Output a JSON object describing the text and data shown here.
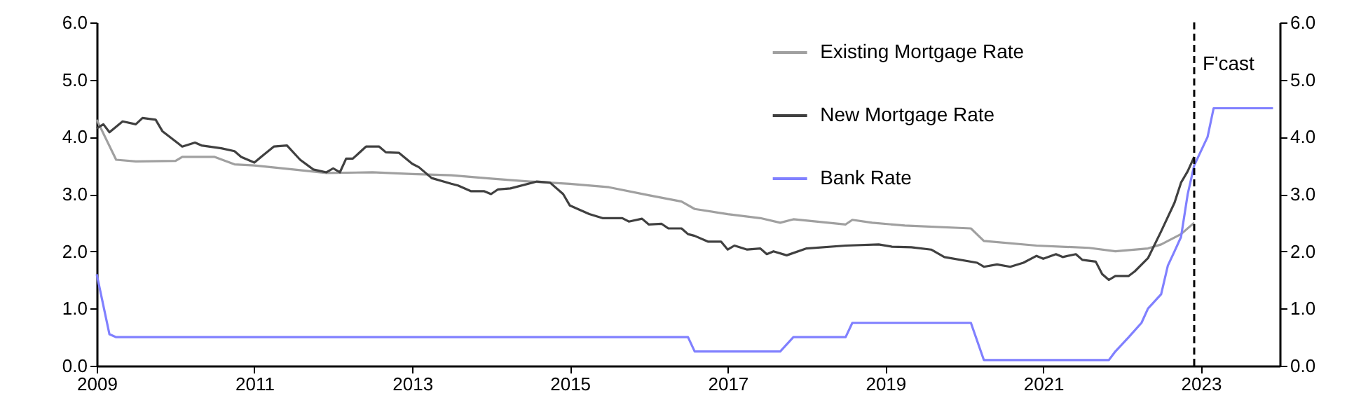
{
  "chart_data": {
    "type": "line",
    "xlim": [
      "2009-01",
      "2024-01"
    ],
    "xticks": [
      "2009",
      "2011",
      "2013",
      "2015",
      "2017",
      "2019",
      "2021",
      "2023"
    ],
    "ylim": [
      0,
      6
    ],
    "yticks": [
      {
        "value": 0,
        "label": "0.0"
      },
      {
        "value": 1,
        "label": "1.0"
      },
      {
        "value": 2,
        "label": "2.0"
      },
      {
        "value": 3,
        "label": "3.0"
      },
      {
        "value": 4,
        "label": "4.0"
      },
      {
        "value": 5,
        "label": "5.0"
      },
      {
        "value": 6,
        "label": "6.0"
      }
    ],
    "y2lim": [
      0,
      6
    ],
    "y2ticks": [
      {
        "value": 0,
        "label": "0.0"
      },
      {
        "value": 1,
        "label": "1.0"
      },
      {
        "value": 2,
        "label": "2.0"
      },
      {
        "value": 3,
        "label": "3.0"
      },
      {
        "value": 4,
        "label": "4.0"
      },
      {
        "value": 5,
        "label": "5.0"
      },
      {
        "value": 6,
        "label": "6.0"
      }
    ],
    "grid": false,
    "legend": "top right",
    "line_style": "solid",
    "ref_lines": [
      {
        "axis": "x",
        "value": "2022-12",
        "label": "F'cast",
        "color": "#000000",
        "line_style": "dashed"
      }
    ],
    "series": [
      {
        "name": "Existing Mortgage Rate",
        "color": "#a0a0a0",
        "x": [
          "2009-01",
          "2009-04",
          "2009-07",
          "2010-01",
          "2010-02",
          "2010-07",
          "2010-10",
          "2011-01",
          "2011-07",
          "2011-12",
          "2012-07",
          "2013-01",
          "2013-07",
          "2014-01",
          "2014-07",
          "2015-01",
          "2015-07",
          "2016-01",
          "2016-06",
          "2016-08",
          "2017-01",
          "2017-06",
          "2017-09",
          "2017-11",
          "2018-07",
          "2018-08",
          "2018-11",
          "2019-04",
          "2020-02",
          "2020-04",
          "2020-12",
          "2021-08",
          "2021-12",
          "2022-05",
          "2022-07",
          "2022-10",
          "2022-12"
        ],
        "values": [
          4.3,
          3.6,
          3.57,
          3.58,
          3.65,
          3.65,
          3.52,
          3.5,
          3.43,
          3.37,
          3.38,
          3.35,
          3.33,
          3.27,
          3.22,
          3.18,
          3.12,
          2.98,
          2.87,
          2.74,
          2.65,
          2.58,
          2.5,
          2.56,
          2.47,
          2.55,
          2.5,
          2.45,
          2.4,
          2.18,
          2.1,
          2.06,
          2.0,
          2.05,
          2.12,
          2.3,
          2.5
        ]
      },
      {
        "name": "New Mortgage Rate",
        "color": "#404040",
        "x": [
          "2009-01",
          "2009-02",
          "2009-03",
          "2009-05",
          "2009-07",
          "2009-08",
          "2009-10",
          "2009-11",
          "2010-02",
          "2010-04",
          "2010-05",
          "2010-08",
          "2010-10",
          "2010-11",
          "2011-01",
          "2011-02",
          "2011-04",
          "2011-06",
          "2011-08",
          "2011-10",
          "2011-12",
          "2012-01",
          "2012-02",
          "2012-03",
          "2012-04",
          "2012-06",
          "2012-08",
          "2012-09",
          "2012-11",
          "2013-01",
          "2013-02",
          "2013-04",
          "2013-07",
          "2013-08",
          "2013-10",
          "2013-12",
          "2014-01",
          "2014-02",
          "2014-04",
          "2014-08",
          "2014-10",
          "2014-12",
          "2015-01",
          "2015-02",
          "2015-04",
          "2015-06",
          "2015-09",
          "2015-10",
          "2015-12",
          "2016-01",
          "2016-03",
          "2016-04",
          "2016-06",
          "2016-07",
          "2016-08",
          "2016-10",
          "2016-12",
          "2017-01",
          "2017-02",
          "2017-04",
          "2017-06",
          "2017-07",
          "2017-08",
          "2017-10",
          "2018-01",
          "2018-07",
          "2018-12",
          "2019-02",
          "2019-05",
          "2019-08",
          "2019-10",
          "2020-03",
          "2020-04",
          "2020-06",
          "2020-08",
          "2020-10",
          "2020-12",
          "2021-01",
          "2021-03",
          "2021-04",
          "2021-06",
          "2021-07",
          "2021-09",
          "2021-10",
          "2021-11",
          "2021-12",
          "2022-02",
          "2022-03",
          "2022-05",
          "2022-07",
          "2022-09",
          "2022-10",
          "2022-11",
          "2022-12"
        ],
        "values": [
          4.15,
          4.22,
          4.08,
          4.27,
          4.22,
          4.33,
          4.3,
          4.1,
          3.83,
          3.9,
          3.85,
          3.8,
          3.75,
          3.65,
          3.55,
          3.65,
          3.83,
          3.85,
          3.6,
          3.43,
          3.38,
          3.45,
          3.38,
          3.62,
          3.62,
          3.83,
          3.83,
          3.73,
          3.72,
          3.53,
          3.47,
          3.28,
          3.18,
          3.15,
          3.05,
          3.05,
          3.0,
          3.08,
          3.1,
          3.22,
          3.2,
          3.0,
          2.8,
          2.75,
          2.65,
          2.58,
          2.58,
          2.52,
          2.57,
          2.47,
          2.48,
          2.4,
          2.4,
          2.3,
          2.27,
          2.17,
          2.17,
          2.03,
          2.1,
          2.03,
          2.05,
          1.95,
          2.0,
          1.93,
          2.05,
          2.1,
          2.12,
          2.08,
          2.07,
          2.03,
          1.9,
          1.8,
          1.73,
          1.77,
          1.73,
          1.8,
          1.92,
          1.87,
          1.95,
          1.9,
          1.95,
          1.85,
          1.82,
          1.6,
          1.5,
          1.57,
          1.57,
          1.65,
          1.88,
          2.35,
          2.85,
          3.2,
          3.4,
          3.65
        ]
      },
      {
        "name": "Bank Rate",
        "color": "#8080ff",
        "x": [
          "2009-01",
          "2009-03",
          "2009-04",
          "2016-07",
          "2016-08",
          "2017-09",
          "2017-11",
          "2018-07",
          "2018-08",
          "2020-02",
          "2020-04",
          "2021-11",
          "2021-12",
          "2022-02",
          "2022-04",
          "2022-05",
          "2022-07",
          "2022-08",
          "2022-09",
          "2022-10",
          "2022-11",
          "2022-12",
          "2023-02",
          "2023-03",
          "2023-12"
        ],
        "values": [
          1.6,
          0.55,
          0.5,
          0.5,
          0.25,
          0.25,
          0.5,
          0.5,
          0.75,
          0.75,
          0.1,
          0.1,
          0.25,
          0.5,
          0.75,
          1.0,
          1.25,
          1.75,
          2.0,
          2.25,
          3.0,
          3.5,
          4.0,
          4.5,
          4.5
        ]
      }
    ]
  }
}
